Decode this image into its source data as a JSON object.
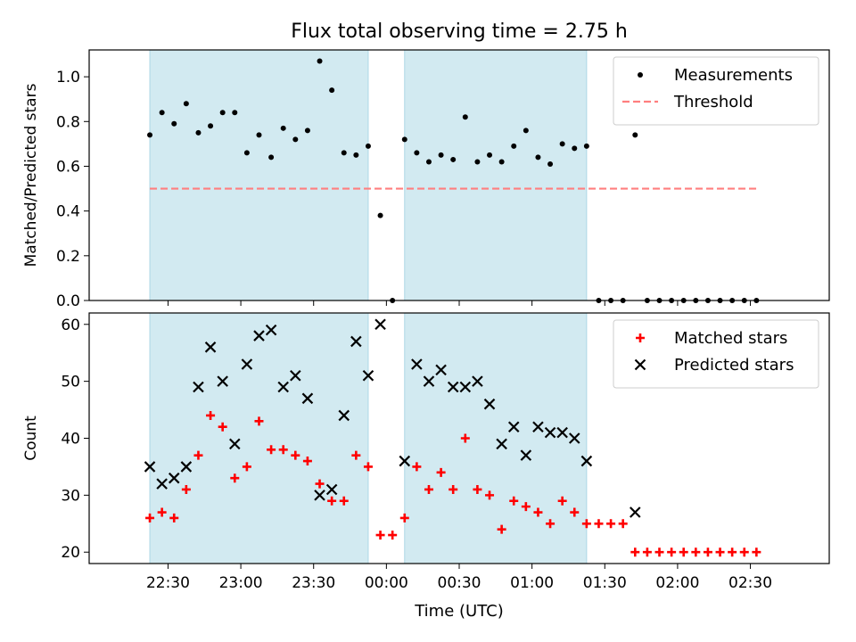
{
  "chart_data": {
    "type": "scatter",
    "title": "Flux total observing time = 2.75 h",
    "xlabel": "Time (UTC)",
    "x_tick_labels": [
      "22:30",
      "23:00",
      "23:30",
      "00:00",
      "00:30",
      "01:00",
      "01:30",
      "02:00",
      "02:30"
    ],
    "x_tick_minutes": [
      22.5,
      52.5,
      82.5,
      112.5,
      142.5,
      172.5,
      202.5,
      232.5,
      262.5
    ],
    "xlim_minutes": [
      -10,
      295
    ],
    "shaded_intervals": [
      {
        "start": "22:15",
        "end": "23:45"
      },
      {
        "start": "00:00",
        "end": "01:15"
      }
    ],
    "x": [
      "22:15",
      "22:20",
      "22:25",
      "22:30",
      "22:35",
      "22:40",
      "22:45",
      "22:50",
      "22:55",
      "23:00",
      "23:05",
      "23:10",
      "23:15",
      "23:20",
      "23:25",
      "23:30",
      "23:35",
      "23:40",
      "23:45",
      "23:50",
      "23:55",
      "00:00",
      "00:05",
      "00:10",
      "00:15",
      "00:20",
      "00:25",
      "00:30",
      "00:35",
      "00:40",
      "00:45",
      "00:50",
      "00:55",
      "01:00",
      "01:05",
      "01:10",
      "01:15",
      "01:20",
      "01:25",
      "01:30",
      "01:35",
      "01:40",
      "01:45",
      "01:50",
      "01:55",
      "02:00",
      "02:05",
      "02:10",
      "02:15",
      "02:20",
      "02:25"
    ],
    "panels": [
      {
        "ylabel": "Matched/Predicted stars",
        "ylim": [
          0,
          1.12
        ],
        "y_ticks": [
          0.0,
          0.2,
          0.4,
          0.6,
          0.8,
          1.0
        ],
        "y_tick_labels": [
          "0.0",
          "0.2",
          "0.4",
          "0.6",
          "0.8",
          "1.0"
        ],
        "legend_position": "top-right",
        "series": [
          {
            "name": "Measurements",
            "marker": "dot",
            "color": "#000000",
            "values": [
              0.74,
              0.84,
              0.79,
              0.88,
              0.75,
              0.78,
              0.84,
              0.84,
              0.66,
              0.74,
              0.64,
              0.77,
              0.72,
              0.76,
              1.07,
              0.94,
              0.66,
              0.65,
              0.69,
              0.38,
              0.0,
              0.72,
              0.66,
              0.62,
              0.65,
              0.63,
              0.82,
              0.62,
              0.65,
              0.62,
              0.69,
              0.76,
              0.64,
              0.61,
              0.7,
              0.68,
              0.69,
              0.0,
              0.0,
              0.0,
              0.74,
              0.0,
              0.0,
              0.0,
              0.0,
              0.0,
              0.0,
              0.0,
              0.0,
              0.0,
              0.0
            ]
          },
          {
            "name": "Threshold",
            "marker": "dashed-line",
            "color": "#ff7f7f",
            "x_range": [
              "22:15",
              "02:25"
            ],
            "values": [
              0.5
            ]
          }
        ]
      },
      {
        "ylabel": "Count",
        "ylim": [
          18,
          62
        ],
        "y_ticks": [
          20,
          30,
          40,
          50,
          60
        ],
        "y_tick_labels": [
          "20",
          "30",
          "40",
          "50",
          "60"
        ],
        "legend_position": "top-right",
        "series": [
          {
            "name": "Matched stars",
            "marker": "plus",
            "color": "#ff0000",
            "values": [
              26,
              27,
              26,
              31,
              37,
              44,
              42,
              33,
              35,
              43,
              38,
              38,
              37,
              36,
              32,
              29,
              29,
              37,
              35,
              23,
              23,
              26,
              35,
              31,
              34,
              31,
              40,
              31,
              30,
              24,
              29,
              28,
              27,
              25,
              29,
              27,
              25,
              25,
              25,
              25,
              20,
              20,
              20,
              20,
              20,
              20,
              20,
              20,
              20,
              20,
              20
            ]
          },
          {
            "name": "Predicted stars",
            "marker": "x",
            "color": "#000000",
            "values": [
              35,
              32,
              33,
              35,
              49,
              56,
              50,
              39,
              53,
              58,
              59,
              49,
              51,
              47,
              30,
              31,
              44,
              57,
              51,
              60,
              null,
              36,
              53,
              50,
              52,
              49,
              49,
              50,
              46,
              39,
              42,
              37,
              42,
              41,
              41,
              40,
              36,
              null,
              null,
              null,
              27,
              null,
              null,
              null,
              null,
              null,
              null,
              null,
              null,
              null,
              null
            ]
          }
        ]
      }
    ]
  },
  "colors": {
    "shade": "#add8e6",
    "threshold": "#ff7f7f",
    "matched": "#ff0000",
    "predicted": "#000000",
    "measurement": "#000000"
  }
}
